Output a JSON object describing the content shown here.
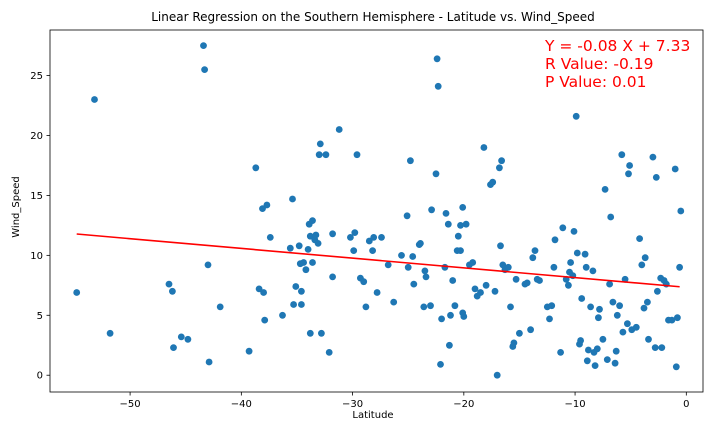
{
  "chart_data": {
    "type": "scatter",
    "title": "Linear Regression on the Southern Hemisphere - Latitude vs. Wind_Speed",
    "xlabel": "Latitude",
    "ylabel": "Wind_Speed",
    "xlim": [
      -57.2,
      1.5
    ],
    "ylim": [
      -1.4,
      28.8
    ],
    "xticks": [
      -50,
      -40,
      -30,
      -20,
      -10,
      0
    ],
    "yticks": [
      0,
      5,
      10,
      15,
      20,
      25
    ],
    "grid": false,
    "legend": "none",
    "colors": {
      "points": "#1f77b4",
      "line": "#ff0000",
      "annotation": "#ff0000"
    },
    "regression": {
      "slope": -0.08,
      "intercept": 7.33,
      "x_range": [
        -54.8,
        -0.6
      ]
    },
    "annotations": [
      "Y = -0.08 X + 7.33",
      "R Value: -0.19",
      "P Value: 0.01"
    ],
    "points": [
      [
        -54.8,
        6.9
      ],
      [
        -53.2,
        23.0
      ],
      [
        -51.8,
        3.5
      ],
      [
        -46.5,
        7.6
      ],
      [
        -46.2,
        7.0
      ],
      [
        -46.1,
        2.3
      ],
      [
        -45.4,
        3.2
      ],
      [
        -44.8,
        3.0
      ],
      [
        -43.4,
        27.5
      ],
      [
        -43.3,
        25.5
      ],
      [
        -43.0,
        9.2
      ],
      [
        -42.9,
        1.1
      ],
      [
        -41.9,
        5.7
      ],
      [
        -39.3,
        2.0
      ],
      [
        -38.7,
        17.3
      ],
      [
        -38.4,
        7.2
      ],
      [
        -38.1,
        13.9
      ],
      [
        -38.0,
        6.9
      ],
      [
        -37.9,
        4.6
      ],
      [
        -37.7,
        14.2
      ],
      [
        -37.4,
        11.5
      ],
      [
        -36.3,
        5.0
      ],
      [
        -35.6,
        10.6
      ],
      [
        -35.4,
        14.7
      ],
      [
        -35.3,
        5.9
      ],
      [
        -35.1,
        7.4
      ],
      [
        -34.8,
        10.8
      ],
      [
        -34.7,
        9.3
      ],
      [
        -34.6,
        7.0
      ],
      [
        -34.6,
        5.9
      ],
      [
        -34.4,
        9.4
      ],
      [
        -34.2,
        8.8
      ],
      [
        -34.0,
        10.5
      ],
      [
        -33.9,
        12.6
      ],
      [
        -33.8,
        3.5
      ],
      [
        -33.8,
        11.6
      ],
      [
        -33.6,
        12.9
      ],
      [
        -33.6,
        9.4
      ],
      [
        -33.4,
        11.3
      ],
      [
        -33.3,
        11.7
      ],
      [
        -33.1,
        11.0
      ],
      [
        -33.0,
        18.4
      ],
      [
        -32.9,
        19.3
      ],
      [
        -32.8,
        3.5
      ],
      [
        -32.4,
        18.4
      ],
      [
        -32.1,
        1.9
      ],
      [
        -31.8,
        8.2
      ],
      [
        -31.8,
        11.8
      ],
      [
        -31.2,
        20.5
      ],
      [
        -30.2,
        11.5
      ],
      [
        -29.9,
        10.4
      ],
      [
        -29.8,
        11.9
      ],
      [
        -29.6,
        18.4
      ],
      [
        -29.3,
        8.1
      ],
      [
        -29.0,
        7.8
      ],
      [
        -28.8,
        5.7
      ],
      [
        -28.5,
        11.2
      ],
      [
        -28.2,
        10.4
      ],
      [
        -28.1,
        11.5
      ],
      [
        -27.8,
        6.9
      ],
      [
        -27.4,
        11.5
      ],
      [
        -26.8,
        9.2
      ],
      [
        -26.3,
        6.1
      ],
      [
        -25.6,
        10.0
      ],
      [
        -25.1,
        13.3
      ],
      [
        -25.0,
        9.0
      ],
      [
        -24.8,
        17.9
      ],
      [
        -24.6,
        9.9
      ],
      [
        -24.5,
        7.6
      ],
      [
        -24.0,
        10.9
      ],
      [
        -23.9,
        11.0
      ],
      [
        -23.6,
        5.7
      ],
      [
        -23.5,
        8.7
      ],
      [
        -23.4,
        8.2
      ],
      [
        -23.0,
        5.8
      ],
      [
        -22.9,
        13.8
      ],
      [
        -22.5,
        16.8
      ],
      [
        -22.4,
        26.4
      ],
      [
        -22.3,
        24.1
      ],
      [
        -22.1,
        0.9
      ],
      [
        -22.0,
        4.7
      ],
      [
        -21.7,
        9.0
      ],
      [
        -21.6,
        13.5
      ],
      [
        -21.4,
        12.6
      ],
      [
        -21.3,
        2.5
      ],
      [
        -21.2,
        5.0
      ],
      [
        -21.0,
        7.9
      ],
      [
        -20.8,
        5.8
      ],
      [
        -20.6,
        10.4
      ],
      [
        -20.5,
        11.6
      ],
      [
        -20.3,
        12.5
      ],
      [
        -20.3,
        10.4
      ],
      [
        -20.1,
        5.2
      ],
      [
        -20.1,
        14.0
      ],
      [
        -20.0,
        4.9
      ],
      [
        -19.8,
        12.6
      ],
      [
        -19.5,
        9.2
      ],
      [
        -19.2,
        9.4
      ],
      [
        -19.0,
        7.2
      ],
      [
        -18.8,
        6.6
      ],
      [
        -18.5,
        6.9
      ],
      [
        -18.2,
        19.0
      ],
      [
        -18.0,
        7.5
      ],
      [
        -17.6,
        15.9
      ],
      [
        -17.4,
        16.1
      ],
      [
        -17.2,
        7.0
      ],
      [
        -17.0,
        0.0
      ],
      [
        -16.8,
        17.3
      ],
      [
        -16.7,
        10.8
      ],
      [
        -16.6,
        17.9
      ],
      [
        -16.5,
        9.2
      ],
      [
        -16.3,
        8.8
      ],
      [
        -16.0,
        9.0
      ],
      [
        -15.8,
        5.7
      ],
      [
        -15.6,
        2.4
      ],
      [
        -15.5,
        2.7
      ],
      [
        -15.3,
        8.0
      ],
      [
        -15.0,
        3.5
      ],
      [
        -14.5,
        7.6
      ],
      [
        -14.3,
        7.7
      ],
      [
        -14.0,
        3.8
      ],
      [
        -13.8,
        9.8
      ],
      [
        -13.6,
        10.4
      ],
      [
        -13.4,
        8.0
      ],
      [
        -13.2,
        7.9
      ],
      [
        -12.5,
        5.7
      ],
      [
        -12.3,
        4.7
      ],
      [
        -12.1,
        5.8
      ],
      [
        -11.9,
        9.0
      ],
      [
        -11.8,
        11.3
      ],
      [
        -11.3,
        1.9
      ],
      [
        -11.1,
        12.3
      ],
      [
        -10.8,
        8.0
      ],
      [
        -10.6,
        7.5
      ],
      [
        -10.5,
        8.6
      ],
      [
        -10.4,
        9.4
      ],
      [
        -10.2,
        8.3
      ],
      [
        -10.1,
        12.0
      ],
      [
        -9.9,
        21.6
      ],
      [
        -9.8,
        10.2
      ],
      [
        -9.6,
        2.6
      ],
      [
        -9.5,
        2.9
      ],
      [
        -9.4,
        6.4
      ],
      [
        -9.1,
        10.1
      ],
      [
        -9.0,
        9.0
      ],
      [
        -8.9,
        1.2
      ],
      [
        -8.8,
        2.1
      ],
      [
        -8.6,
        5.7
      ],
      [
        -8.4,
        8.7
      ],
      [
        -8.3,
        1.9
      ],
      [
        -8.2,
        0.8
      ],
      [
        -8.0,
        2.2
      ],
      [
        -7.9,
        4.8
      ],
      [
        -7.8,
        5.5
      ],
      [
        -7.5,
        3.0
      ],
      [
        -7.3,
        15.5
      ],
      [
        -7.1,
        1.3
      ],
      [
        -6.9,
        7.6
      ],
      [
        -6.8,
        13.2
      ],
      [
        -6.6,
        6.1
      ],
      [
        -6.4,
        1.0
      ],
      [
        -6.3,
        2.0
      ],
      [
        -6.2,
        5.0
      ],
      [
        -6.0,
        5.8
      ],
      [
        -5.8,
        18.4
      ],
      [
        -5.7,
        3.6
      ],
      [
        -5.5,
        8.0
      ],
      [
        -5.3,
        4.3
      ],
      [
        -5.2,
        16.8
      ],
      [
        -5.1,
        17.5
      ],
      [
        -4.9,
        3.8
      ],
      [
        -4.5,
        4.0
      ],
      [
        -4.2,
        11.4
      ],
      [
        -4.0,
        9.2
      ],
      [
        -3.8,
        5.6
      ],
      [
        -3.7,
        9.8
      ],
      [
        -3.5,
        6.1
      ],
      [
        -3.4,
        3.0
      ],
      [
        -3.0,
        18.2
      ],
      [
        -2.8,
        2.3
      ],
      [
        -2.7,
        16.5
      ],
      [
        -2.6,
        7.0
      ],
      [
        -2.3,
        8.1
      ],
      [
        -2.2,
        2.3
      ],
      [
        -2.0,
        7.9
      ],
      [
        -1.8,
        7.6
      ],
      [
        -1.6,
        4.6
      ],
      [
        -1.3,
        4.6
      ],
      [
        -1.0,
        17.2
      ],
      [
        -0.9,
        0.7
      ],
      [
        -0.8,
        4.8
      ],
      [
        -0.6,
        9.0
      ],
      [
        -0.5,
        13.7
      ]
    ]
  }
}
